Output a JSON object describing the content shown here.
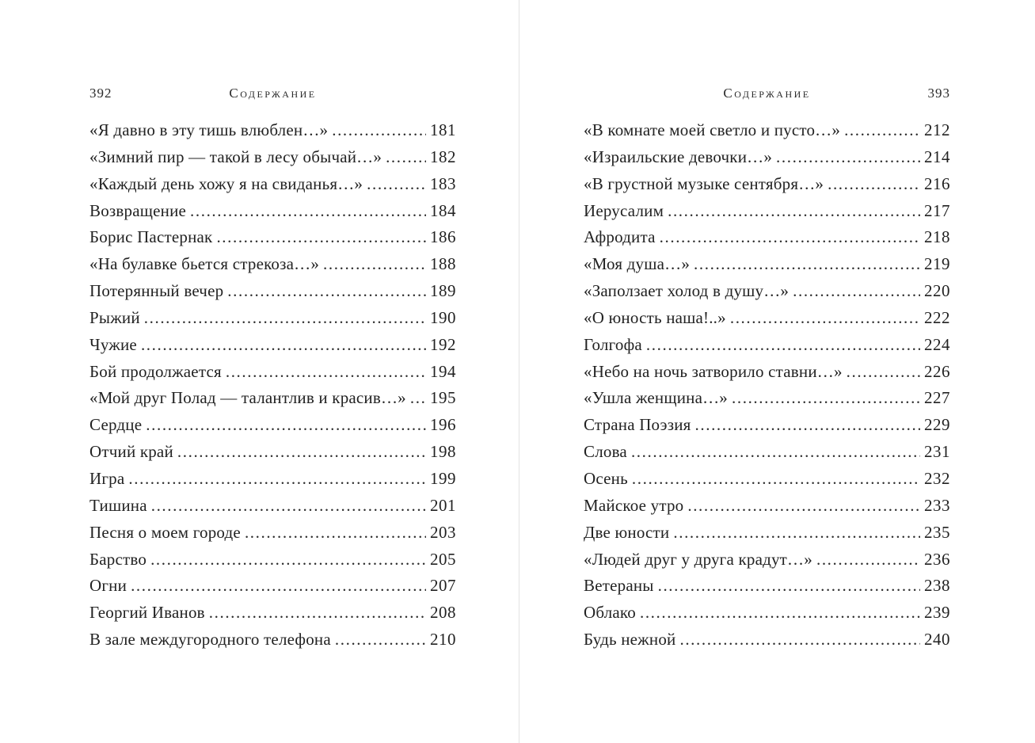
{
  "colors": {
    "paper": "#ffffff",
    "ink": "#222222",
    "divider_line": "#e3e3e3"
  },
  "spread": {
    "left_page": {
      "folio": "392",
      "running_title": "Содержание",
      "entries": [
        {
          "title": "«Я давно в эту тишь влюблен…»",
          "page": "181"
        },
        {
          "title": "«Зимний пир — такой в лесу обычай…»",
          "page": "182"
        },
        {
          "title": "«Каждый день хожу я на свиданья…»",
          "page": "183"
        },
        {
          "title": "Возвращение",
          "page": "184"
        },
        {
          "title": "Борис Пастернак",
          "page": "186"
        },
        {
          "title": "«На булавке бьется стрекоза…»",
          "page": "188"
        },
        {
          "title": "Потерянный вечер",
          "page": "189"
        },
        {
          "title": "Рыжий",
          "page": "190"
        },
        {
          "title": "Чужие",
          "page": "192"
        },
        {
          "title": "Бой продолжается",
          "page": "194"
        },
        {
          "title": "«Мой друг Полад — талантлив и красив…»",
          "page": "195"
        },
        {
          "title": "Сердце",
          "page": "196"
        },
        {
          "title": "Отчий край",
          "page": "198"
        },
        {
          "title": "Игра",
          "page": "199"
        },
        {
          "title": "Тишина",
          "page": "201"
        },
        {
          "title": "Песня о моем городе",
          "page": "203"
        },
        {
          "title": "Барство",
          "page": "205"
        },
        {
          "title": "Огни",
          "page": "207"
        },
        {
          "title": "Георгий Иванов",
          "page": "208"
        },
        {
          "title": "В зале междугородного телефона",
          "page": "210"
        }
      ]
    },
    "right_page": {
      "folio": "393",
      "running_title": "Содержание",
      "entries": [
        {
          "title": "«В комнате моей светло и пусто…»",
          "page": "212"
        },
        {
          "title": "«Израильские девочки…»",
          "page": "214"
        },
        {
          "title": "«В грустной музыке сентября…»",
          "page": "216"
        },
        {
          "title": "Иерусалим",
          "page": "217"
        },
        {
          "title": "Афродита",
          "page": "218"
        },
        {
          "title": "«Моя душа…»",
          "page": "219"
        },
        {
          "title": "«Заползает холод в душу…»",
          "page": "220"
        },
        {
          "title": "«О юность наша!..»",
          "page": "222"
        },
        {
          "title": "Голгофа",
          "page": "224"
        },
        {
          "title": "«Небо на ночь затворило ставни…»",
          "page": "226"
        },
        {
          "title": "«Ушла женщина…»",
          "page": "227"
        },
        {
          "title": "Страна Поэзия",
          "page": "229"
        },
        {
          "title": "Слова",
          "page": "231"
        },
        {
          "title": "Осень",
          "page": "232"
        },
        {
          "title": "Майское утро",
          "page": "233"
        },
        {
          "title": "Две юности",
          "page": "235"
        },
        {
          "title": "«Людей друг у друга крадут…»",
          "page": "236"
        },
        {
          "title": "Ветераны",
          "page": "238"
        },
        {
          "title": "Облако",
          "page": "239"
        },
        {
          "title": "Будь нежной",
          "page": "240"
        }
      ]
    }
  }
}
